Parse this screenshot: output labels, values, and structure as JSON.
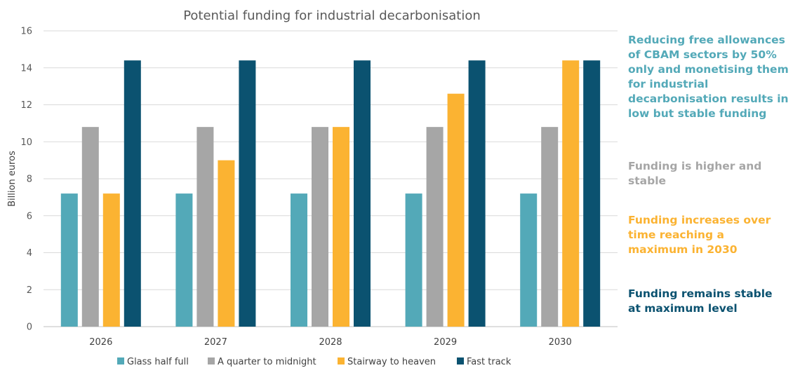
{
  "chart_data": {
    "type": "bar",
    "title": "Potential funding for industrial decarbonisation",
    "ylabel": "Billion euros",
    "xlabel": "",
    "ylim": [
      0,
      16
    ],
    "yticks": [
      0,
      2,
      4,
      6,
      8,
      10,
      12,
      14,
      16
    ],
    "grid": true,
    "legend_position": "bottom",
    "categories": [
      "2026",
      "2027",
      "2028",
      "2029",
      "2030"
    ],
    "series": [
      {
        "name": "Glass half full",
        "color": "#53A9B8",
        "values": [
          7.2,
          7.2,
          7.2,
          7.2,
          7.2
        ]
      },
      {
        "name": "A quarter to midnight",
        "color": "#A6A6A6",
        "values": [
          10.8,
          10.8,
          10.8,
          10.8,
          10.8
        ]
      },
      {
        "name": "Stairway to heaven",
        "color": "#FBB332",
        "values": [
          7.2,
          9.0,
          10.8,
          12.6,
          14.4
        ]
      },
      {
        "name": "Fast track",
        "color": "#0B5270",
        "values": [
          14.4,
          14.4,
          14.4,
          14.4,
          14.4
        ]
      }
    ]
  },
  "annotations": [
    {
      "text": "Reducing free allowances of CBAM sectors by 50% only and monetising them for industrial decarbonisation results in low but stable funding",
      "color": "#53A9B8"
    },
    {
      "text": "Funding is higher and stable",
      "color": "#A6A6A6"
    },
    {
      "text": "Funding increases over time reaching a maximum in 2030",
      "color": "#FBB332"
    },
    {
      "text": "Funding remains stable at maximum level",
      "color": "#0B5270"
    }
  ]
}
